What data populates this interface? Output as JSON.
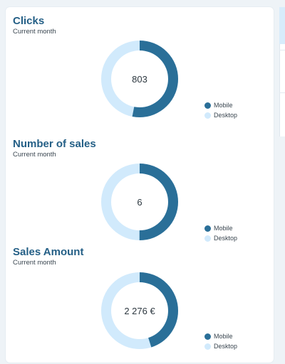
{
  "colors": {
    "mobile": "#2a6f98",
    "desktop": "#d1eafc",
    "title": "#245f86"
  },
  "widgets": [
    {
      "title": "Clicks",
      "subtitle": "Current month",
      "total": "803",
      "mobile_share": 0.53,
      "legend": [
        "Mobile",
        "Desktop"
      ]
    },
    {
      "title": "Number of sales",
      "subtitle": "Current month",
      "total": "6",
      "mobile_share": 0.5,
      "legend": [
        "Mobile",
        "Desktop"
      ]
    },
    {
      "title": "Sales Amount",
      "subtitle": "Current month",
      "total": "2 276 €",
      "mobile_share": 0.45,
      "legend": [
        "Mobile",
        "Desktop"
      ]
    }
  ]
}
